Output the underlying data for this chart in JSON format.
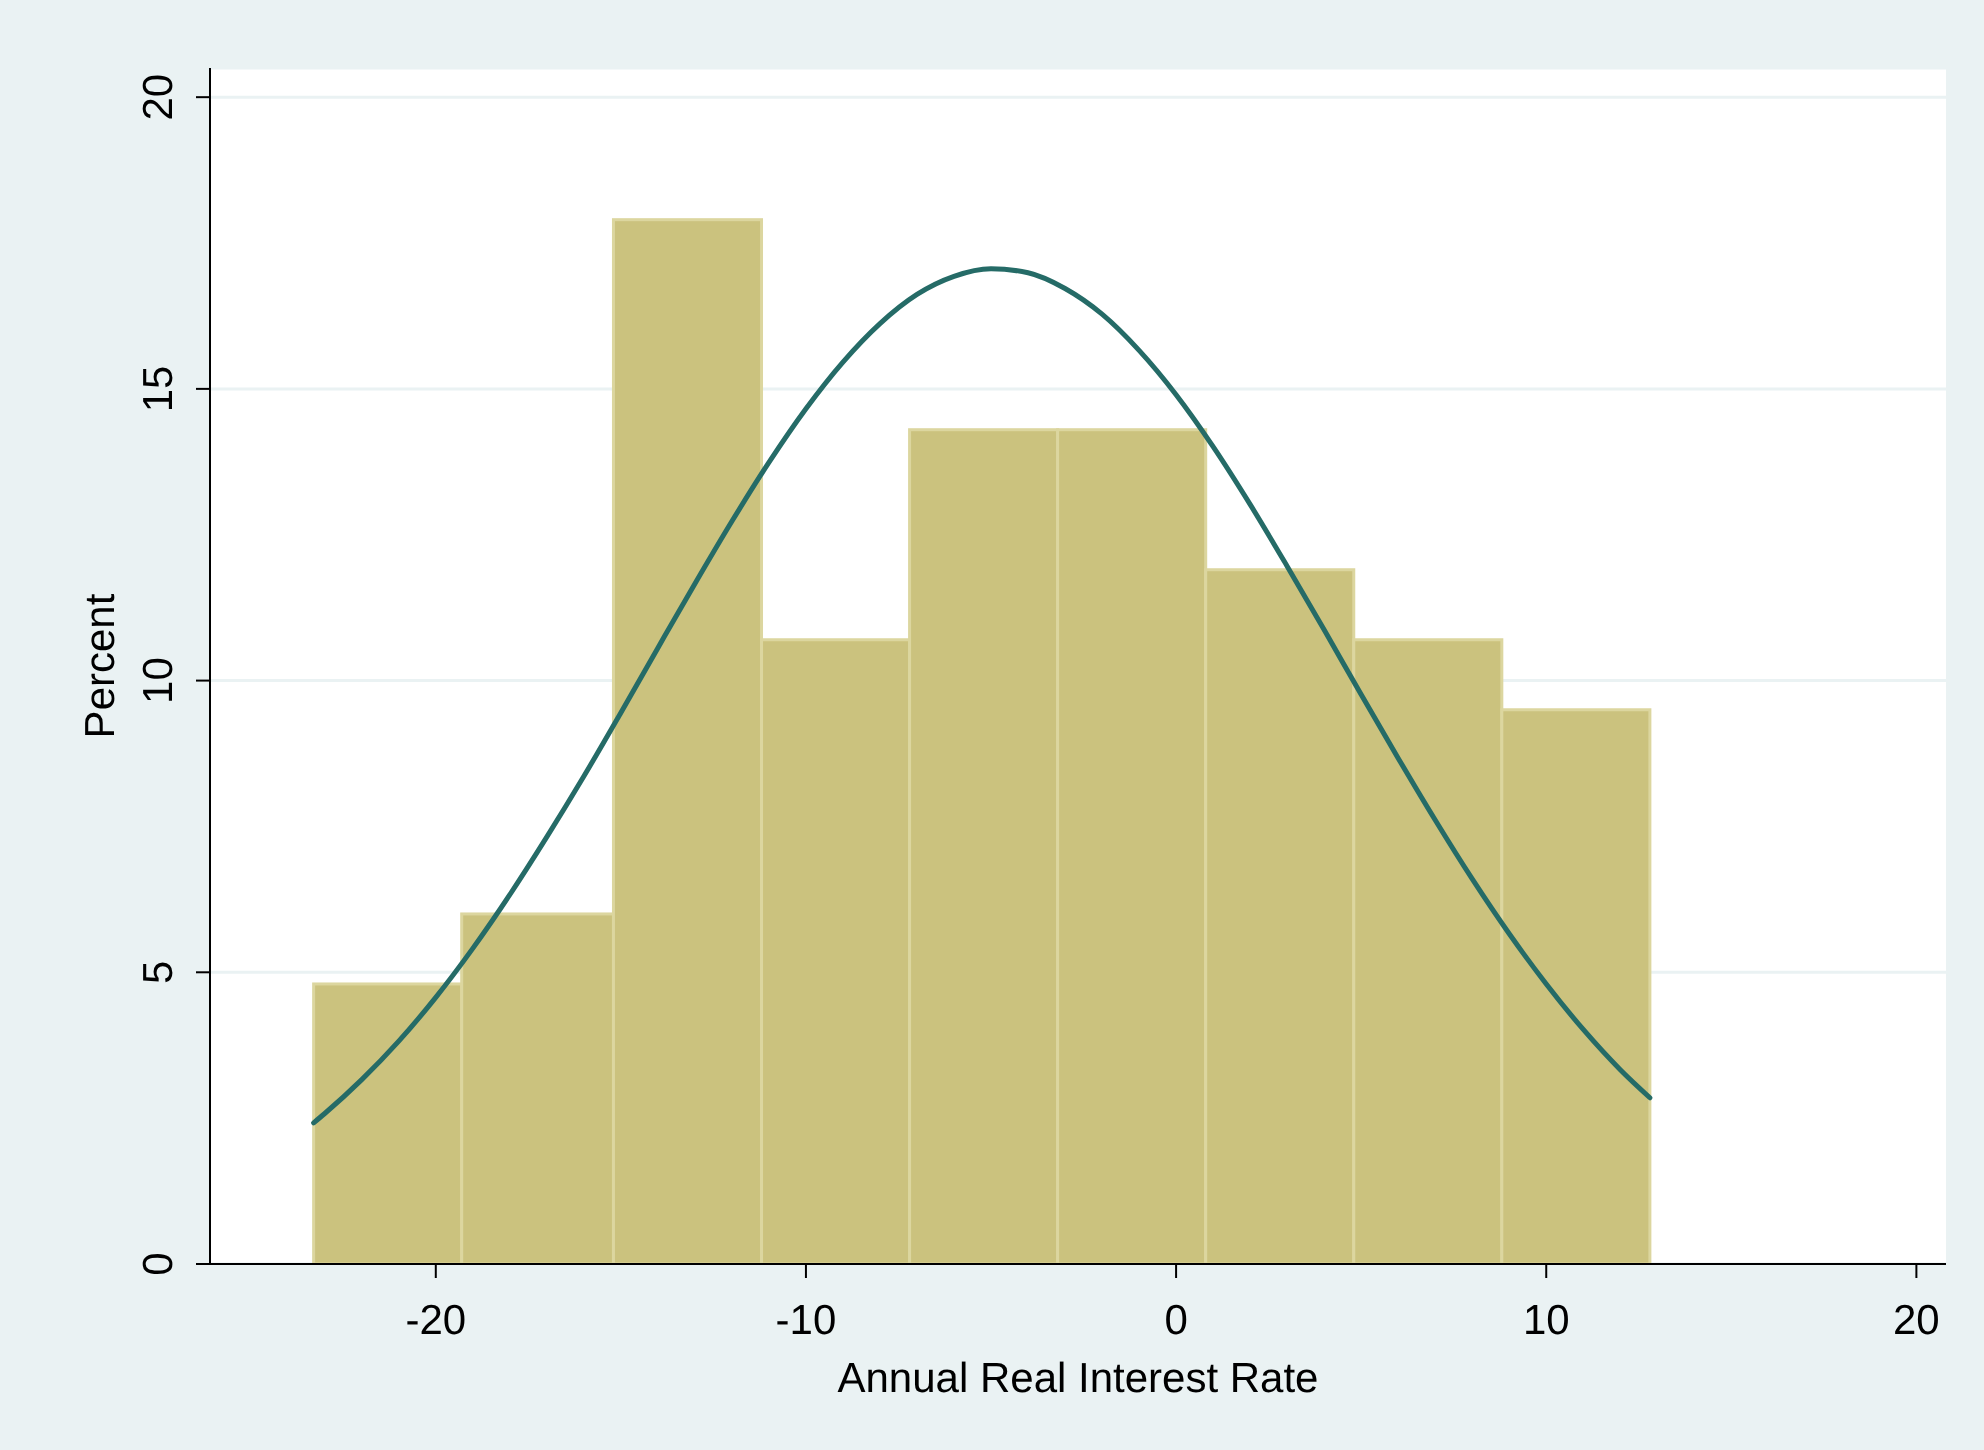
{
  "chart_data": {
    "type": "histogram",
    "xlabel": "Annual Real Interest Rate",
    "ylabel": "Percent",
    "bins": [
      -23.3,
      -19.3,
      -15.2,
      -11.2,
      -7.2,
      -3.2,
      0.8,
      4.8,
      8.8,
      12.8
    ],
    "values": [
      4.8,
      6.0,
      17.9,
      10.7,
      14.3,
      14.3,
      11.9,
      10.7,
      9.5
    ],
    "color": "#cbc27e",
    "series": [
      {
        "type": "line",
        "color": "#256b67",
        "x": [
          -23.3,
          -23,
          -22,
          -21,
          -20,
          -19,
          -18,
          -17,
          -16,
          -15,
          -14,
          -13,
          -12,
          -11,
          -10,
          -9,
          -8,
          -7,
          -6,
          -5,
          -4,
          -3,
          -2,
          -1,
          0,
          1,
          2,
          3,
          4,
          5,
          6,
          7,
          8,
          9,
          10,
          11,
          12,
          12.8
        ],
        "values": [
          2.42,
          2.58,
          3.16,
          3.82,
          4.57,
          5.41,
          6.33,
          7.32,
          8.36,
          9.45,
          10.56,
          11.66,
          12.73,
          13.74,
          14.66,
          15.46,
          16.12,
          16.62,
          16.93,
          17.06,
          16.99,
          16.72,
          16.28,
          15.66,
          14.9,
          14.01,
          13.02,
          11.96,
          10.87,
          9.76,
          8.67,
          7.61,
          6.6,
          5.66,
          4.8,
          4.02,
          3.33,
          2.85
        ]
      }
    ],
    "xlim": [
      -26.1,
      20.8
    ],
    "xticks": [
      -20,
      -10,
      0,
      10,
      20
    ],
    "ylim": [
      0,
      20.5
    ],
    "yticks": [
      0,
      5,
      10,
      15,
      20
    ],
    "grid": "y"
  }
}
